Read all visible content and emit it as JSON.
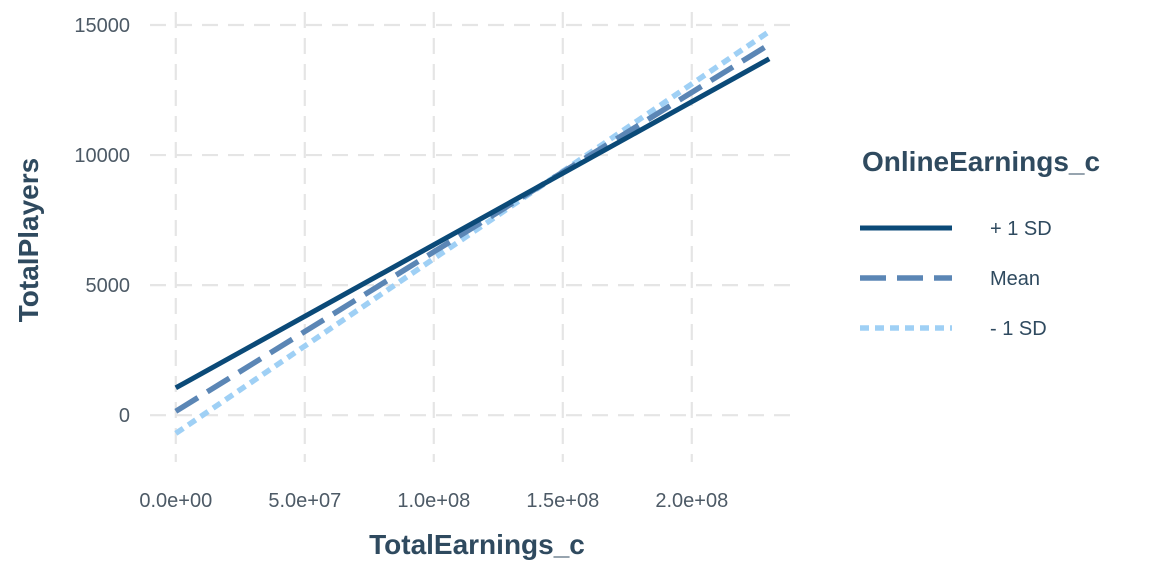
{
  "chart_data": {
    "type": "line",
    "xlabel": "TotalEarnings_c",
    "ylabel": "TotalPlayers",
    "xlim": [
      -10000000,
      240000000
    ],
    "ylim": [
      -1800,
      15500
    ],
    "x_ticks": [
      0,
      50000000,
      100000000,
      150000000,
      200000000
    ],
    "x_tick_labels": [
      "0.0e+00",
      "5.0e+07",
      "1.0e+08",
      "1.5e+08",
      "2.0e+08"
    ],
    "y_ticks": [
      0,
      5000,
      10000,
      15000
    ],
    "y_tick_labels": [
      "0",
      "5000",
      "10000",
      "15000"
    ],
    "grid": true,
    "legend": {
      "title": "OnlineEarnings_c",
      "position": "right"
    },
    "series": [
      {
        "name": "+ 1 SD",
        "x": [
          0,
          230000000
        ],
        "y": [
          1050,
          13700
        ],
        "color": "#0b4a78",
        "dash": "solid"
      },
      {
        "name": "Mean",
        "x": [
          0,
          230000000
        ],
        "y": [
          150,
          14250
        ],
        "color": "#5b86b5",
        "dash": "dashed"
      },
      {
        "name": "- 1 SD",
        "x": [
          0,
          230000000
        ],
        "y": [
          -700,
          14750
        ],
        "color": "#9fd0f5",
        "dash": "dotted"
      }
    ]
  }
}
